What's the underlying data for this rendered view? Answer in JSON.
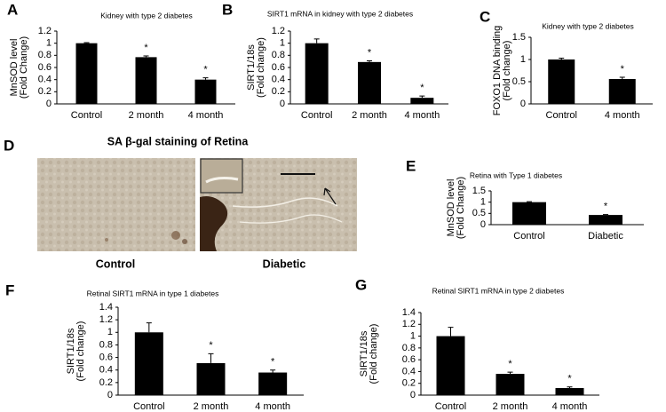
{
  "chart_data": [
    {
      "type": "bar",
      "panel": "A",
      "title": "Kidney with type 2 diabetes",
      "ylabel": [
        "MnSOD level",
        "(Fold Change)"
      ],
      "categories": [
        "Control",
        "2 month",
        "4 month"
      ],
      "values": [
        1.0,
        0.77,
        0.4
      ],
      "errors": [
        0.01,
        0.02,
        0.03
      ],
      "significance": [
        null,
        "*",
        "*"
      ],
      "color": "#000000",
      "ylim": [
        0,
        1.2
      ],
      "yticks": [
        0,
        0.2,
        0.4,
        0.6,
        0.8,
        1,
        1.2
      ]
    },
    {
      "type": "bar",
      "panel": "B",
      "title": "SIRT1 mRNA in kidney with type 2 diabetes",
      "ylabel": [
        "SIRT1/18s",
        "(Fold change)"
      ],
      "categories": [
        "Control",
        "2 month",
        "4 month"
      ],
      "values": [
        1.0,
        0.69,
        0.1
      ],
      "errors": [
        0.07,
        0.02,
        0.03
      ],
      "significance": [
        null,
        "*",
        "*"
      ],
      "color": "#000000",
      "ylim": [
        0,
        1.2
      ],
      "yticks": [
        0,
        0.2,
        0.4,
        0.6,
        0.8,
        1,
        1.2
      ]
    },
    {
      "type": "bar",
      "panel": "C",
      "title": "Kidney with type 2 diabetes",
      "ylabel": [
        "FOXO1 DNA binding",
        "(Fold change)"
      ],
      "categories": [
        "Control",
        "4 month"
      ],
      "values": [
        1.0,
        0.56
      ],
      "errors": [
        0.03,
        0.04
      ],
      "significance": [
        null,
        "*"
      ],
      "color": "#000000",
      "ylim": [
        0,
        1.5
      ],
      "yticks": [
        0,
        0.5,
        1,
        1.5
      ]
    },
    {
      "type": "bar",
      "panel": "E",
      "title": "Retina with Type 1 diabetes",
      "ylabel": [
        "MnSOD level",
        "(Fold Change)"
      ],
      "categories": [
        "Control",
        "Diabetic"
      ],
      "values": [
        1.0,
        0.43
      ],
      "errors": [
        0.02,
        0.02
      ],
      "significance": [
        null,
        "*"
      ],
      "color": "#000000",
      "ylim": [
        0,
        1.5
      ],
      "yticks": [
        0,
        0.5,
        1,
        1.5
      ]
    },
    {
      "type": "bar",
      "panel": "F",
      "title": "Retinal SIRT1 mRNA in type 1 diabetes",
      "ylabel": [
        "SIRT1/18s",
        "(Fold change)"
      ],
      "categories": [
        "Control",
        "2 month",
        "4 month"
      ],
      "values": [
        1.0,
        0.51,
        0.36
      ],
      "errors": [
        0.15,
        0.15,
        0.04
      ],
      "significance": [
        null,
        "*",
        "*"
      ],
      "color": "#000000",
      "ylim": [
        0,
        1.4
      ],
      "yticks": [
        0,
        0.2,
        0.4,
        0.6,
        0.8,
        1,
        1.2,
        1.4
      ]
    },
    {
      "type": "bar",
      "panel": "G",
      "title": "Retinal SIRT1 mRNA in type 2 diabetes",
      "ylabel": [
        "SIRT1/18s",
        "(Fold change)"
      ],
      "categories": [
        "Control",
        "2 month",
        "4 month"
      ],
      "values": [
        1.0,
        0.36,
        0.12
      ],
      "errors": [
        0.15,
        0.03,
        0.02
      ],
      "significance": [
        null,
        "*",
        "*"
      ],
      "color": "#000000",
      "ylim": [
        0,
        1.4
      ],
      "yticks": [
        0,
        0.2,
        0.4,
        0.6,
        0.8,
        1,
        1.2,
        1.4
      ]
    }
  ],
  "image_panel": {
    "panel": "D",
    "title": "SA β-gal staining of Retina",
    "labels": [
      "Control",
      "Diabetic"
    ]
  }
}
